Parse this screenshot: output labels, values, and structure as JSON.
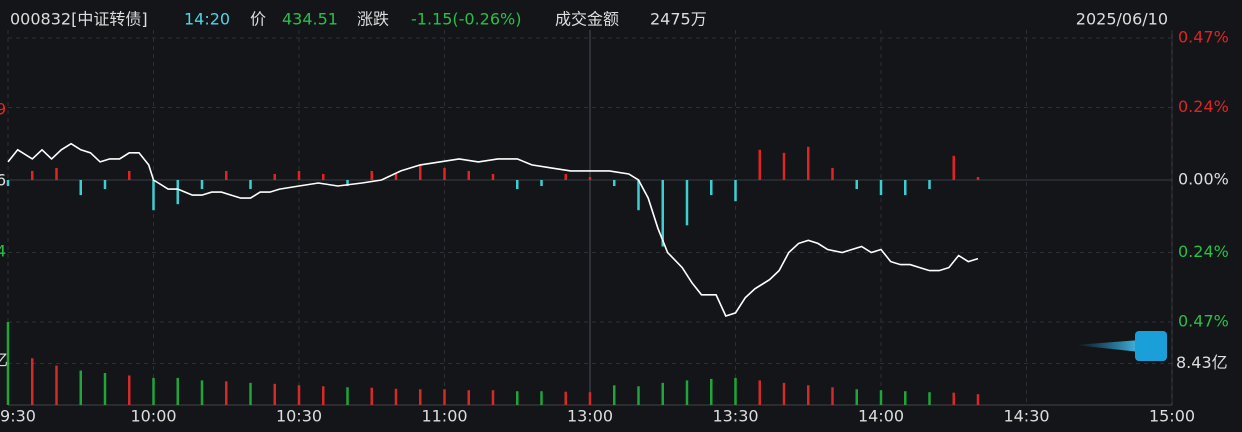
{
  "header": {
    "code": "000832[中证转债]",
    "time": "14:20",
    "price_label": "价",
    "price": "434.51",
    "change_label": "涨跌",
    "change": "-1.15(-0.26%)",
    "amount_label": "成交金额",
    "amount": "2475万",
    "date": "2025/06/10"
  },
  "left_labels": [
    "9",
    "6",
    "4",
    "亿"
  ],
  "chart_data": {
    "type": "line",
    "color": "#ffffff",
    "up_color": "#e02424",
    "down_color": "#3ccfd2",
    "vol_up_color": "#d42a2a",
    "vol_down_color": "#1fa53a",
    "grid": true,
    "x": [
      0,
      2,
      5,
      7,
      9,
      11,
      13,
      15,
      17,
      19,
      21,
      23,
      25,
      27,
      29,
      30,
      31,
      33,
      35,
      38,
      40,
      42,
      44,
      46,
      48,
      50,
      52,
      54,
      56,
      60,
      64,
      68,
      73,
      77,
      81,
      85,
      89,
      93,
      97,
      101,
      105,
      108,
      112,
      116,
      120,
      124,
      128,
      130,
      132,
      134,
      136,
      139,
      141,
      143,
      146,
      148,
      150,
      152,
      154,
      157,
      159,
      161,
      163,
      165,
      167,
      169,
      172,
      174,
      176,
      178,
      180,
      182,
      184,
      186,
      188,
      190,
      192,
      194,
      196,
      198,
      200
    ],
    "values": [
      0.06,
      0.1,
      0.07,
      0.1,
      0.07,
      0.1,
      0.12,
      0.1,
      0.09,
      0.06,
      0.07,
      0.07,
      0.09,
      0.09,
      0.05,
      0.0,
      -0.01,
      -0.03,
      -0.03,
      -0.05,
      -0.05,
      -0.04,
      -0.04,
      -0.05,
      -0.06,
      -0.06,
      -0.04,
      -0.04,
      -0.03,
      -0.02,
      -0.01,
      -0.02,
      -0.01,
      0.0,
      0.03,
      0.05,
      0.06,
      0.07,
      0.06,
      0.07,
      0.07,
      0.05,
      0.04,
      0.03,
      0.03,
      0.03,
      0.02,
      0.0,
      -0.06,
      -0.16,
      -0.24,
      -0.29,
      -0.34,
      -0.38,
      -0.38,
      -0.45,
      -0.44,
      -0.39,
      -0.36,
      -0.33,
      -0.3,
      -0.24,
      -0.21,
      -0.2,
      -0.21,
      -0.23,
      -0.24,
      -0.23,
      -0.22,
      -0.24,
      -0.23,
      -0.27,
      -0.28,
      -0.28,
      -0.29,
      -0.3,
      -0.3,
      -0.29,
      -0.25,
      -0.27,
      -0.26
    ],
    "xlim": [
      0,
      240
    ],
    "xticks": [
      {
        "value": 0,
        "label": "9:30"
      },
      {
        "value": 30,
        "label": "10:00"
      },
      {
        "value": 60,
        "label": "10:30"
      },
      {
        "value": 90,
        "label": "11:00"
      },
      {
        "value": 120,
        "label": "13:00"
      },
      {
        "value": 150,
        "label": "13:30"
      },
      {
        "value": 180,
        "label": "14:00"
      },
      {
        "value": 210,
        "label": "14:30"
      },
      {
        "value": 240,
        "label": "15:00"
      }
    ],
    "ylim": [
      -0.47,
      0.47
    ],
    "yticks": [
      {
        "value": 0.47,
        "label": "0.47%"
      },
      {
        "value": 0.24,
        "label": "0.24%"
      },
      {
        "value": 0,
        "label": "0.00%"
      },
      {
        "value": -0.24,
        "label": "0.24%"
      },
      {
        "value": -0.47,
        "label": "0.47%"
      }
    ],
    "bars": {
      "x": [
        0,
        5,
        10,
        15,
        20,
        25,
        30,
        35,
        40,
        45,
        50,
        55,
        60,
        65,
        70,
        75,
        80,
        85,
        90,
        95,
        100,
        105,
        110,
        115,
        120,
        125,
        130,
        135,
        140,
        145,
        150,
        155,
        160,
        165,
        170,
        175,
        180,
        185,
        190,
        195,
        200
      ],
      "values": [
        -0.02,
        0.03,
        0.04,
        -0.05,
        -0.03,
        0.03,
        -0.1,
        -0.08,
        -0.03,
        0.03,
        -0.03,
        0.02,
        0.03,
        0.02,
        -0.02,
        0.03,
        0.02,
        0.05,
        0.04,
        0.03,
        0.02,
        -0.03,
        -0.02,
        0.02,
        0.01,
        -0.02,
        -0.1,
        -0.22,
        -0.15,
        -0.05,
        -0.07,
        0.1,
        0.09,
        0.11,
        0.04,
        -0.03,
        -0.05,
        -0.05,
        -0.03,
        0.08,
        0.01
      ]
    },
    "volume": {
      "values": [
        16.86,
        9.5,
        8.0,
        7.0,
        6.5,
        6.0,
        5.5,
        5.5,
        5.0,
        4.8,
        4.5,
        4.3,
        4.0,
        3.8,
        3.6,
        3.5,
        3.3,
        3.2,
        3.2,
        3.0,
        3.0,
        2.8,
        2.8,
        2.7,
        2.6,
        4.0,
        3.8,
        4.5,
        5.0,
        5.3,
        5.5,
        5.0,
        4.5,
        4.0,
        3.6,
        3.2,
        3.0,
        2.8,
        2.6,
        2.5,
        2.2
      ],
      "ylim": [
        0,
        16.86
      ],
      "yticks": [
        {
          "value": 8.43,
          "label": "8.43亿"
        }
      ]
    }
  }
}
